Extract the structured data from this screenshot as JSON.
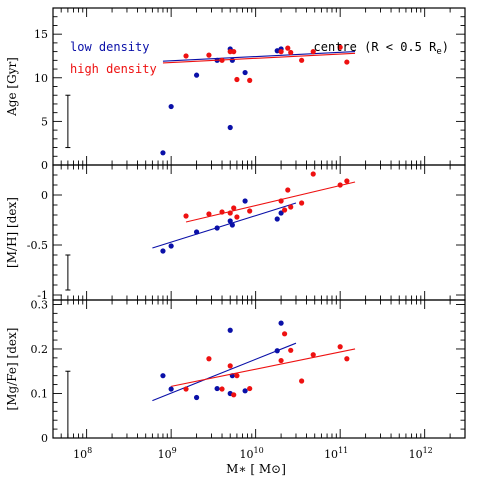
{
  "figure": {
    "xlabel": "M∗ [ M⊙]",
    "annotation": "centre (R < 0.5 R",
    "annotation_sub": "e",
    "annotation_close": ")",
    "legend": {
      "low": "low density",
      "high": "high density"
    }
  },
  "colors": {
    "low": "#0a10a8",
    "high": "#ee1111",
    "axis": "#000000"
  },
  "chart_data": [
    {
      "type": "scatter",
      "title": "",
      "xlabel": "M∗ [ M⊙]",
      "ylabel": "Age [Gyr]",
      "xscale": "log",
      "xlim": [
        40000000,
        3000000000000
      ],
      "ylim": [
        0,
        18
      ],
      "yticks": [
        0,
        5,
        10,
        15
      ],
      "error_bar": {
        "x": 60000000,
        "y": [
          2,
          8
        ]
      },
      "legend_position": "top-left",
      "series": [
        {
          "name": "low density",
          "points": [
            [
              800000000,
              1.4
            ],
            [
              1000000000,
              6.7
            ],
            [
              2000000000,
              10.3
            ],
            [
              3500000000,
              12.0
            ],
            [
              5000000000,
              13.3
            ],
            [
              5000000000,
              4.3
            ],
            [
              5300000000,
              12.0
            ],
            [
              7500000000,
              10.6
            ],
            [
              18000000000,
              13.1
            ],
            [
              20000000000,
              13.3
            ]
          ],
          "fit": [
            [
              800000000,
              11.9
            ],
            [
              150000000000,
              13.0
            ]
          ]
        },
        {
          "name": "high density",
          "points": [
            [
              1500000000,
              12.5
            ],
            [
              2800000000,
              12.6
            ],
            [
              4000000000,
              12.0
            ],
            [
              5000000000,
              13.0
            ],
            [
              5500000000,
              13.0
            ],
            [
              6000000000,
              9.8
            ],
            [
              8500000000,
              9.7
            ],
            [
              20000000000,
              13.0
            ],
            [
              24000000000,
              13.4
            ],
            [
              26000000000,
              12.9
            ],
            [
              35000000000,
              12.0
            ],
            [
              48000000000,
              13.0
            ],
            [
              100000000000,
              13.5
            ],
            [
              120000000000,
              11.8
            ]
          ],
          "fit": [
            [
              800000000,
              11.7
            ],
            [
              150000000000,
              12.8
            ]
          ]
        }
      ]
    },
    {
      "type": "scatter",
      "title": "",
      "xlabel": "M∗ [ M⊙]",
      "ylabel": "[M/H] [dex]",
      "xscale": "log",
      "xlim": [
        40000000,
        3000000000000
      ],
      "ylim": [
        -1.05,
        0.3
      ],
      "yticks": [
        -1,
        -0.5,
        0
      ],
      "error_bar": {
        "x": 60000000,
        "y": [
          -0.95,
          -0.6
        ]
      },
      "series": [
        {
          "name": "low density",
          "points": [
            [
              800000000,
              -0.56
            ],
            [
              1000000000,
              -0.51
            ],
            [
              2000000000,
              -0.37
            ],
            [
              3500000000,
              -0.33
            ],
            [
              5000000000,
              -0.26
            ],
            [
              5300000000,
              -0.3
            ],
            [
              7500000000,
              -0.06
            ],
            [
              18000000000,
              -0.24
            ],
            [
              20000000000,
              -0.18
            ]
          ],
          "fit": [
            [
              600000000,
              -0.53
            ],
            [
              30000000000,
              -0.08
            ]
          ]
        },
        {
          "name": "high density",
          "points": [
            [
              1500000000,
              -0.21
            ],
            [
              2800000000,
              -0.19
            ],
            [
              4000000000,
              -0.17
            ],
            [
              5000000000,
              -0.18
            ],
            [
              5500000000,
              -0.13
            ],
            [
              6000000000,
              -0.22
            ],
            [
              8500000000,
              -0.16
            ],
            [
              20000000000,
              -0.06
            ],
            [
              22000000000,
              -0.15
            ],
            [
              24000000000,
              0.05
            ],
            [
              26000000000,
              -0.12
            ],
            [
              35000000000,
              -0.08
            ],
            [
              48000000000,
              0.21
            ],
            [
              100000000000,
              0.1
            ],
            [
              120000000000,
              0.14
            ]
          ],
          "fit": [
            [
              1500000000,
              -0.27
            ],
            [
              150000000000,
              0.13
            ]
          ]
        }
      ]
    },
    {
      "type": "scatter",
      "title": "",
      "xlabel": "M∗ [ M⊙]",
      "ylabel": "[Mg/Fe] [dex]",
      "xscale": "log",
      "xlim": [
        40000000,
        3000000000000
      ],
      "ylim": [
        0,
        0.31
      ],
      "yticks": [
        0,
        0.1,
        0.2,
        0.3
      ],
      "xticks_labeled": [
        "10^8",
        "10^9",
        "10^10",
        "10^11",
        "10^12"
      ],
      "error_bar": {
        "x": 60000000,
        "y": [
          0,
          0.15
        ]
      },
      "series": [
        {
          "name": "low density",
          "points": [
            [
              800000000,
              0.14
            ],
            [
              1000000000,
              0.11
            ],
            [
              2000000000,
              0.091
            ],
            [
              3500000000,
              0.111
            ],
            [
              5000000000,
              0.242
            ],
            [
              5000000000,
              0.1
            ],
            [
              5300000000,
              0.14
            ],
            [
              7500000000,
              0.106
            ],
            [
              18000000000,
              0.196
            ],
            [
              20000000000,
              0.258
            ]
          ],
          "fit": [
            [
              600000000,
              0.084
            ],
            [
              30000000000,
              0.213
            ]
          ]
        },
        {
          "name": "high density",
          "points": [
            [
              1500000000,
              0.11
            ],
            [
              2800000000,
              0.178
            ],
            [
              4000000000,
              0.11
            ],
            [
              5000000000,
              0.162
            ],
            [
              5500000000,
              0.097
            ],
            [
              6000000000,
              0.14
            ],
            [
              8500000000,
              0.111
            ],
            [
              20000000000,
              0.174
            ],
            [
              22000000000,
              0.234
            ],
            [
              26000000000,
              0.197
            ],
            [
              35000000000,
              0.128
            ],
            [
              48000000000,
              0.187
            ],
            [
              100000000000,
              0.205
            ],
            [
              120000000000,
              0.178
            ]
          ],
          "fit": [
            [
              1000000000,
              0.116
            ],
            [
              150000000000,
              0.2
            ]
          ]
        }
      ]
    }
  ]
}
